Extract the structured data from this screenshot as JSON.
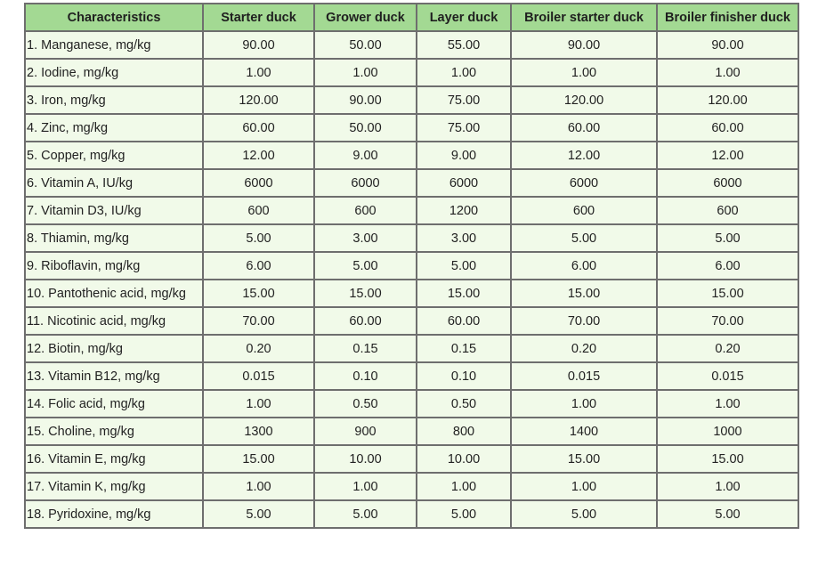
{
  "table": {
    "headers": [
      "Characteristics",
      "Starter duck",
      "Grower duck",
      "Layer duck",
      "Broiler starter duck",
      "Broiler finisher duck"
    ],
    "rows": [
      [
        "1. Manganese, mg/kg",
        "90.00",
        "50.00",
        "55.00",
        "90.00",
        "90.00"
      ],
      [
        "2. Iodine, mg/kg",
        "1.00",
        "1.00",
        "1.00",
        "1.00",
        "1.00"
      ],
      [
        "3. Iron, mg/kg",
        "120.00",
        "90.00",
        "75.00",
        "120.00",
        "120.00"
      ],
      [
        "4. Zinc, mg/kg",
        "60.00",
        "50.00",
        "75.00",
        "60.00",
        "60.00"
      ],
      [
        "5. Copper, mg/kg",
        "12.00",
        "9.00",
        "9.00",
        "12.00",
        "12.00"
      ],
      [
        "6. Vitamin A, IU/kg",
        "6000",
        "6000",
        "6000",
        "6000",
        "6000"
      ],
      [
        "7. Vitamin D3, IU/kg",
        "600",
        "600",
        "1200",
        "600",
        "600"
      ],
      [
        "8. Thiamin, mg/kg",
        "5.00",
        "3.00",
        "3.00",
        "5.00",
        "5.00"
      ],
      [
        "9. Riboflavin, mg/kg",
        "6.00",
        "5.00",
        "5.00",
        "6.00",
        "6.00"
      ],
      [
        "10. Pantothenic acid, mg/kg",
        "15.00",
        "15.00",
        "15.00",
        "15.00",
        "15.00"
      ],
      [
        "11. Nicotinic acid, mg/kg",
        "70.00",
        "60.00",
        "60.00",
        "70.00",
        "70.00"
      ],
      [
        "12. Biotin, mg/kg",
        "0.20",
        "0.15",
        "0.15",
        "0.20",
        "0.20"
      ],
      [
        "13. Vitamin B12, mg/kg",
        "0.015",
        "0.10",
        "0.10",
        "0.015",
        "0.015"
      ],
      [
        "14. Folic acid, mg/kg",
        "1.00",
        "0.50",
        "0.50",
        "1.00",
        "1.00"
      ],
      [
        "15. Choline, mg/kg",
        "1300",
        "900",
        "800",
        "1400",
        "1000"
      ],
      [
        "16. Vitamin E, mg/kg",
        "15.00",
        "10.00",
        "10.00",
        "15.00",
        "15.00"
      ],
      [
        "17. Vitamin K, mg/kg",
        "1.00",
        "1.00",
        "1.00",
        "1.00",
        "1.00"
      ],
      [
        "18. Pyridoxine, mg/kg",
        "5.00",
        "5.00",
        "5.00",
        "5.00",
        "5.00"
      ]
    ]
  },
  "colors": {
    "header_bg": "#a3d993",
    "cell_bg": "#f1fae9",
    "border": "#6e6e6e"
  }
}
